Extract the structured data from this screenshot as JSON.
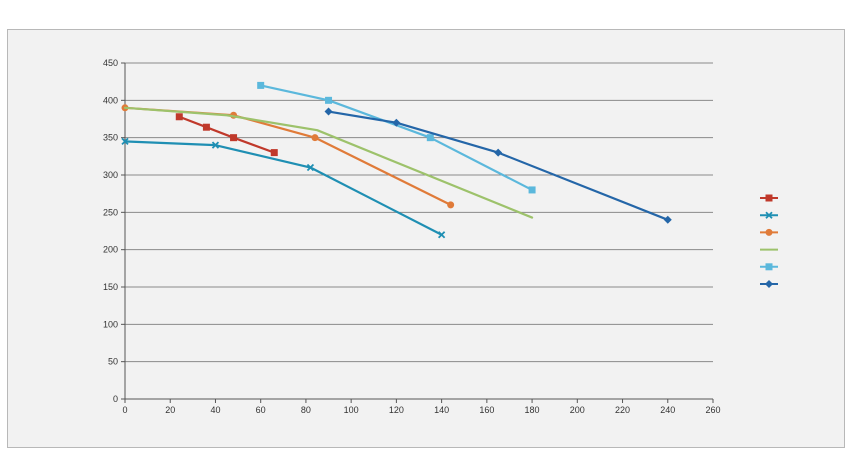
{
  "chart_data": {
    "type": "line",
    "title": "",
    "xlabel": "",
    "ylabel": "",
    "xlim": [
      0,
      260
    ],
    "ylim": [
      0,
      450
    ],
    "x_ticks": [
      0,
      20,
      40,
      60,
      80,
      100,
      120,
      140,
      160,
      180,
      200,
      220,
      240,
      260
    ],
    "y_ticks": [
      0,
      50,
      100,
      150,
      200,
      250,
      300,
      350,
      400,
      450
    ],
    "grid": "horizontal",
    "legend_position": "right",
    "series": [
      {
        "color": "#c0392b",
        "marker": "square",
        "x": [
          24,
          36,
          48,
          66
        ],
        "y": [
          378,
          364,
          350,
          330
        ]
      },
      {
        "color": "#1f8fb3",
        "marker": "x",
        "x": [
          0,
          40,
          82,
          140
        ],
        "y": [
          345,
          340,
          310,
          220
        ]
      },
      {
        "color": "#e07b39",
        "marker": "circle",
        "x": [
          0,
          48,
          84,
          144
        ],
        "y": [
          390,
          380,
          350,
          260
        ]
      },
      {
        "color": "#9dc26b",
        "marker": "none",
        "x": [
          0,
          45,
          85,
          180
        ],
        "y": [
          390,
          380,
          360,
          243
        ]
      },
      {
        "color": "#5bb8dc",
        "marker": "square",
        "x": [
          60,
          90,
          135,
          180
        ],
        "y": [
          420,
          400,
          350,
          280
        ]
      },
      {
        "color": "#2466a8",
        "marker": "diamond",
        "x": [
          90,
          120,
          165,
          240
        ],
        "y": [
          385,
          370,
          330,
          240
        ]
      }
    ]
  }
}
